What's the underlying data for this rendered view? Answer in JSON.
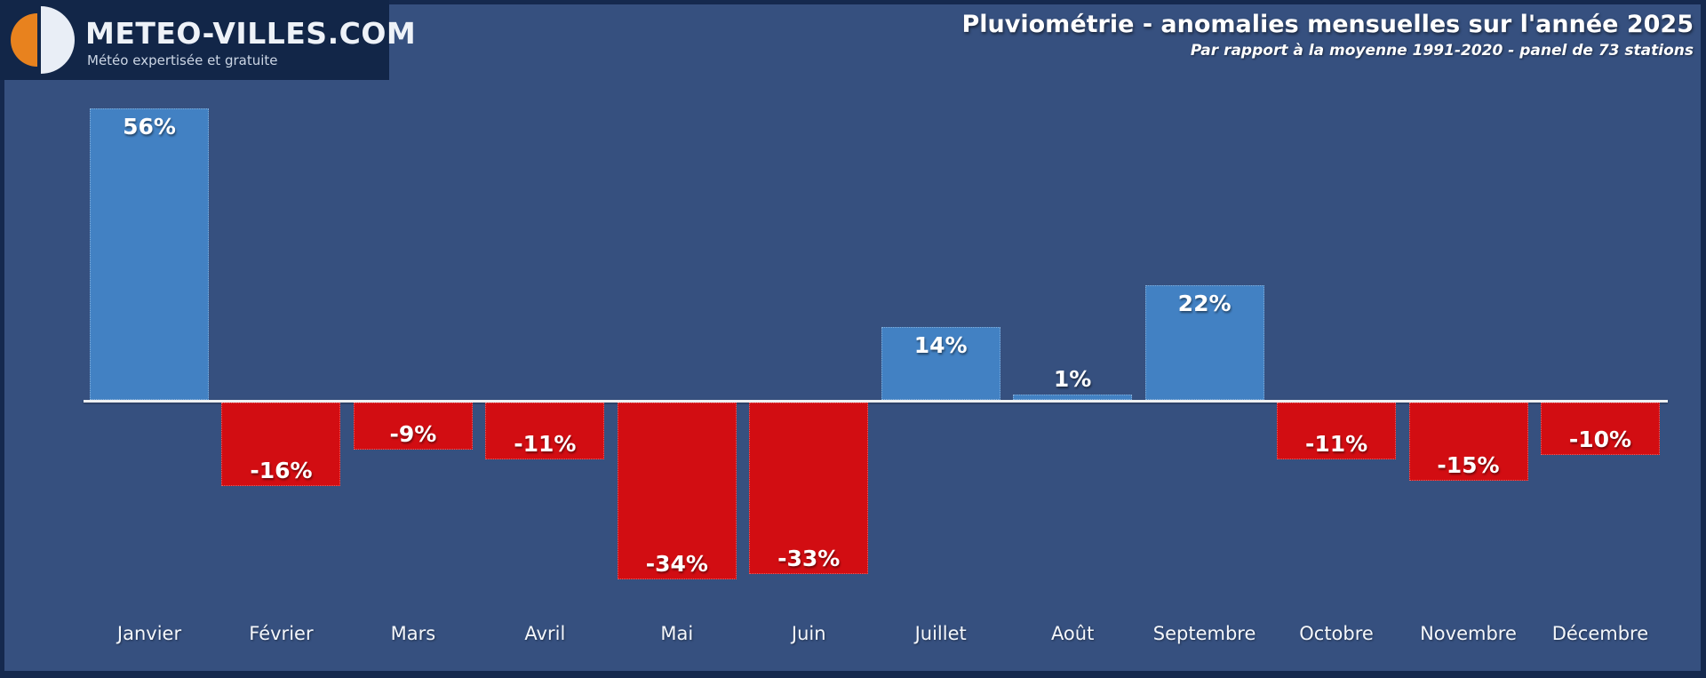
{
  "logo": {
    "brand": "METEO-VILLES.COM",
    "tagline": "Météo expertisée et gratuite"
  },
  "header": {
    "title": "Pluviométrie - anomalies mensuelles sur l'année 2025",
    "subtitle": "Par rapport à la moyenne 1991-2020 - panel de 73 stations"
  },
  "colors": {
    "background": "#36507f",
    "border": "#15294e",
    "panel": "#122648",
    "positive": "#4281c3",
    "negative": "#d20d12",
    "axis": "#eef0f2",
    "logo_orange": "#e8821e",
    "logo_white": "#e9eef6",
    "text": "#ffffff"
  },
  "chart_data": {
    "type": "bar",
    "title": "Pluviométrie - anomalies mensuelles sur l'année 2025",
    "subtitle": "Par rapport à la moyenne 1991-2020 - panel de 73 stations",
    "unit": "%",
    "categories": [
      "Janvier",
      "Février",
      "Mars",
      "Avril",
      "Mai",
      "Juin",
      "Juillet",
      "Août",
      "Septembre",
      "Octobre",
      "Novembre",
      "Décembre"
    ],
    "values": [
      56,
      -16,
      -9,
      -11,
      -34,
      -33,
      14,
      1,
      22,
      -11,
      -15,
      -10
    ],
    "value_labels": [
      "56%",
      "-16%",
      "-9%",
      "-11%",
      "-34%",
      "-33%",
      "14%",
      "1%",
      "22%",
      "-11%",
      "-15%",
      "-10%"
    ],
    "baseline": 0,
    "ylim": [
      -40,
      60
    ],
    "grid": false,
    "legend_position": "none",
    "positive_color": "#4281c3",
    "negative_color": "#d20d12",
    "bar_label_placement": "inside-end (above bar when value is near zero)",
    "xlabel": "",
    "ylabel": ""
  }
}
